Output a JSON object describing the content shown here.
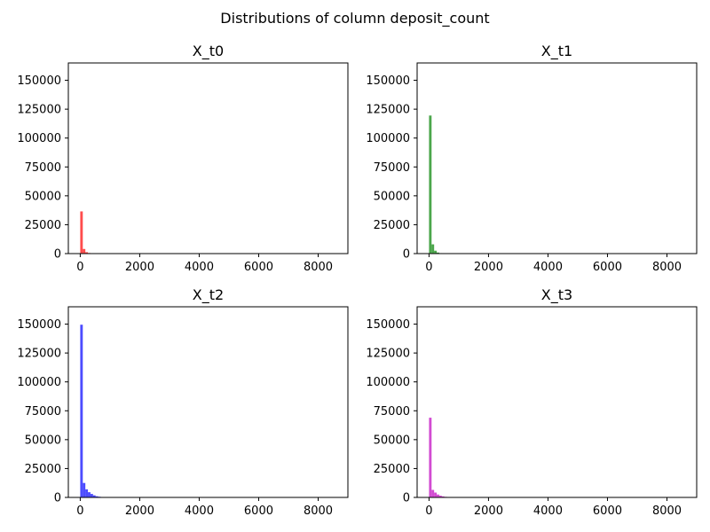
{
  "figure": {
    "title": "Distributions of column deposit_count"
  },
  "chart_data": [
    {
      "type": "bar",
      "title": "X_t0",
      "color": "#ff0000",
      "xlim": [
        -400,
        9000
      ],
      "ylim": [
        0,
        165000
      ],
      "xticks": [
        0,
        2000,
        4000,
        6000,
        8000
      ],
      "yticks": [
        0,
        25000,
        50000,
        75000,
        100000,
        125000,
        150000
      ],
      "bin_start": 0,
      "bin_width": 86,
      "values": [
        36500,
        4000,
        1200,
        500,
        200,
        100,
        50,
        20
      ]
    },
    {
      "type": "bar",
      "title": "X_t1",
      "color": "#008000",
      "xlim": [
        -400,
        9000
      ],
      "ylim": [
        0,
        165000
      ],
      "xticks": [
        0,
        2000,
        4000,
        6000,
        8000
      ],
      "yticks": [
        0,
        25000,
        50000,
        75000,
        100000,
        125000,
        150000
      ],
      "bin_start": 0,
      "bin_width": 86,
      "values": [
        119500,
        8000,
        2500,
        900,
        400,
        200,
        100,
        50
      ]
    },
    {
      "type": "bar",
      "title": "X_t2",
      "color": "#0000ff",
      "xlim": [
        -400,
        9000
      ],
      "ylim": [
        0,
        165000
      ],
      "xticks": [
        0,
        2000,
        4000,
        6000,
        8000
      ],
      "yticks": [
        0,
        25000,
        50000,
        75000,
        100000,
        125000,
        150000
      ],
      "bin_start": 0,
      "bin_width": 86,
      "values": [
        149500,
        12500,
        7000,
        4500,
        3000,
        1800,
        1000,
        600,
        300,
        200,
        100
      ]
    },
    {
      "type": "bar",
      "title": "X_t3",
      "color": "#bf00bf",
      "xlim": [
        -400,
        9000
      ],
      "ylim": [
        0,
        165000
      ],
      "xticks": [
        0,
        2000,
        4000,
        6000,
        8000
      ],
      "yticks": [
        0,
        25000,
        50000,
        75000,
        100000,
        125000,
        150000
      ],
      "bin_start": 0,
      "bin_width": 86,
      "values": [
        69000,
        6500,
        4200,
        2500,
        1500,
        900,
        500,
        300,
        150,
        80
      ]
    }
  ]
}
